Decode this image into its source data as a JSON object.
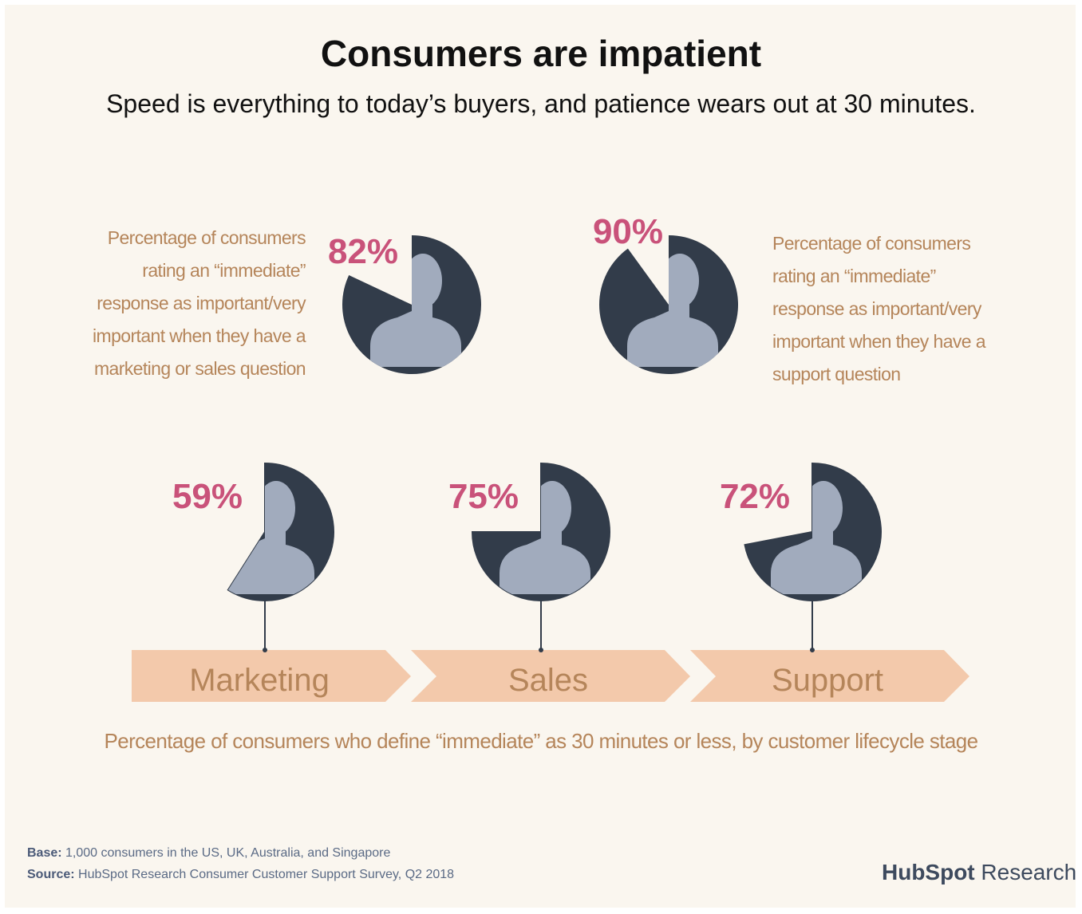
{
  "title": "Consumers are impatient",
  "subtitle": "Speed is everything to today’s buyers, and patience wears out at 30 minutes.",
  "chart_data": [
    {
      "type": "pie",
      "description": "Percentage of consumers rating an “immediate” response as important/very important when they have a marketing or sales question",
      "values": [
        82
      ],
      "value_labels": [
        "82%"
      ],
      "color": "#323c4a"
    },
    {
      "type": "pie",
      "description": "Percentage of consumers rating an “immediate” response as important/very important when they have a support question",
      "values": [
        90
      ],
      "value_labels": [
        "90%"
      ],
      "color": "#323c4a"
    },
    {
      "type": "pie",
      "caption": "Percentage of consumers who define “immediate” as 30 minutes or less, by customer lifecycle stage",
      "categories": [
        "Marketing",
        "Sales",
        "Support"
      ],
      "values": [
        59,
        75,
        72
      ],
      "value_labels": [
        "59%",
        "75%",
        "72%"
      ],
      "color": "#323c4a"
    }
  ],
  "footer": {
    "base_label": "Base:",
    "base": "1,000 consumers in the US, UK, Australia, and Singapore",
    "source_label": "Source:",
    "source": "HubSpot Research Consumer Customer Support Survey, Q2 2018"
  },
  "brand": "HubSpot",
  "brand_suffix": "Research"
}
